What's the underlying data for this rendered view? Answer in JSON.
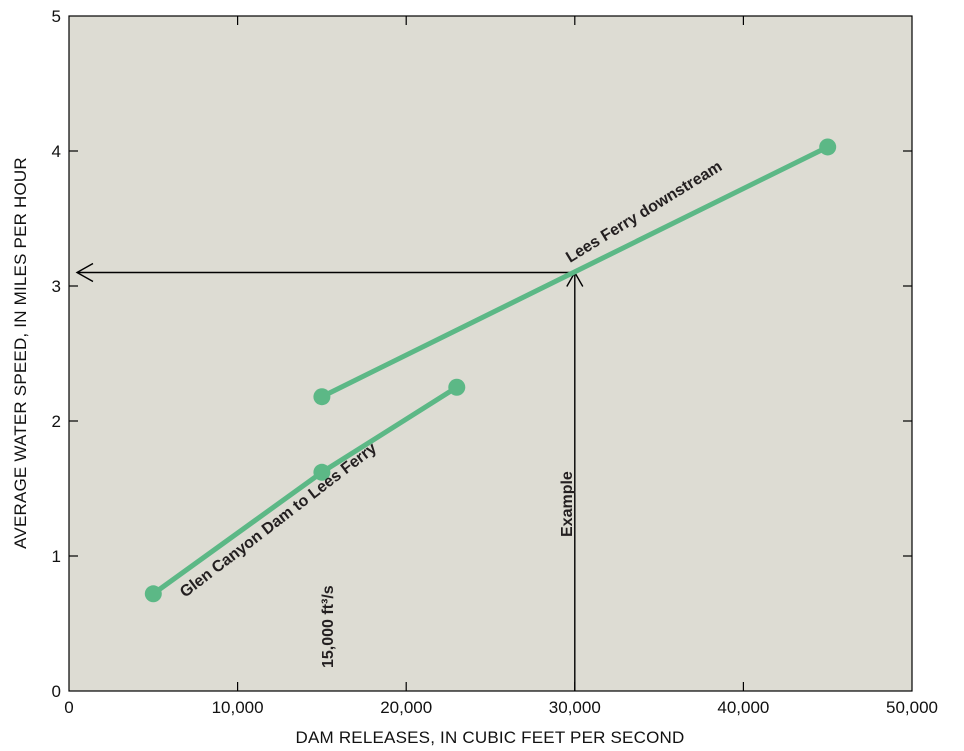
{
  "chart_data": {
    "type": "line",
    "xlabel": "DAM RELEASES, IN CUBIC FEET PER SECOND",
    "ylabel": "AVERAGE WATER SPEED, IN MILES PER HOUR",
    "xlim": [
      0,
      50000
    ],
    "ylim": [
      0,
      5
    ],
    "x_ticks": [
      "0",
      "10,000",
      "20,000",
      "30,000",
      "40,000",
      "50,000"
    ],
    "y_ticks": [
      "0",
      "1",
      "2",
      "3",
      "4",
      "5"
    ],
    "grid": false,
    "series": [
      {
        "name": "Glen Canyon Dam to Lees Ferry",
        "x": [
          5000,
          15000,
          23000
        ],
        "y": [
          0.72,
          1.62,
          2.25
        ]
      },
      {
        "name": "Lees Ferry downstream",
        "x": [
          15000,
          45000
        ],
        "y": [
          2.18,
          4.03
        ]
      }
    ],
    "annotations": [
      {
        "text": "Example",
        "x": 30000,
        "y": 3.1
      },
      {
        "text": "15,000 ft³/s",
        "x": 15000
      }
    ],
    "colors": {
      "plot_background": "#dddcd3",
      "series_line": "#5cb886",
      "marker": "#5cb886",
      "axis": "#000000"
    }
  }
}
